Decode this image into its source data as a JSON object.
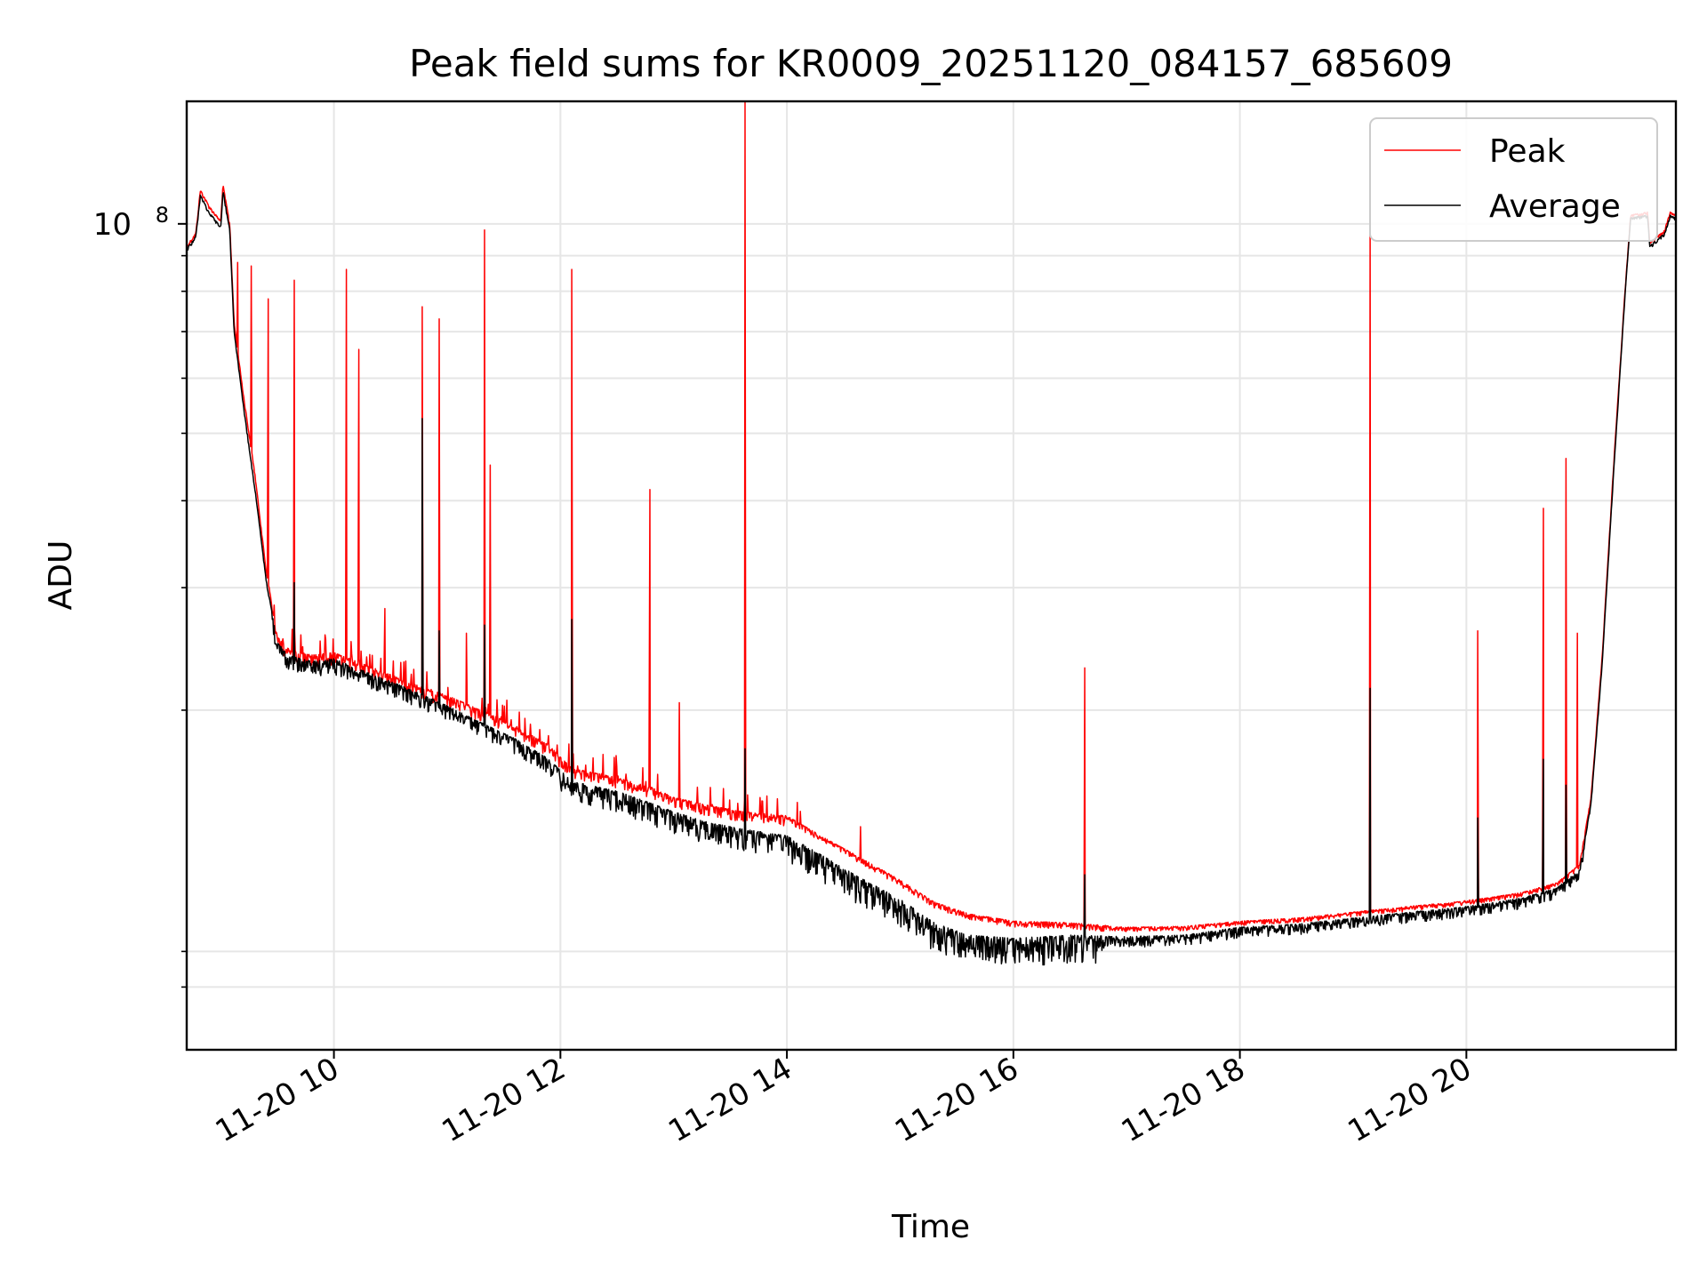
{
  "chart_data": {
    "type": "line",
    "title": "Peak field sums for KR0009_20251120_084157_685609",
    "xlabel": "Time",
    "ylabel": "ADU",
    "yscale": "log",
    "grid": true,
    "legend_position": "top-right",
    "x_unit": "hour of day (2025-11-20)",
    "xlim": [
      8.7,
      21.85
    ],
    "ylim": [
      6500000,
      150000000
    ],
    "x_ticks": [
      {
        "value": 10,
        "label": "11-20 10"
      },
      {
        "value": 12,
        "label": "11-20 12"
      },
      {
        "value": 14,
        "label": "11-20 14"
      },
      {
        "value": 16,
        "label": "11-20 16"
      },
      {
        "value": 18,
        "label": "11-20 18"
      },
      {
        "value": 20,
        "label": "11-20 20"
      }
    ],
    "y_major_tick": {
      "value": 100000000,
      "label_base": "10",
      "label_exp": "8"
    },
    "y_minor_ticks": [
      8000000,
      9000000,
      20000000,
      30000000,
      40000000,
      50000000,
      60000000,
      70000000,
      80000000,
      90000000
    ],
    "series": [
      {
        "name": "Peak",
        "color": "#ff0000",
        "baseline": [
          [
            8.7,
            93000000
          ],
          [
            8.78,
            97000000
          ],
          [
            8.82,
            112000000
          ],
          [
            8.9,
            106000000
          ],
          [
            9.0,
            101000000
          ],
          [
            9.02,
            114000000
          ],
          [
            9.08,
            100000000
          ],
          [
            9.12,
            72000000
          ],
          [
            9.2,
            57000000
          ],
          [
            9.3,
            44000000
          ],
          [
            9.4,
            32000000
          ],
          [
            9.5,
            25500000
          ],
          [
            9.6,
            24500000
          ],
          [
            9.8,
            24000000
          ],
          [
            10.0,
            24200000
          ],
          [
            10.2,
            23500000
          ],
          [
            10.5,
            22500000
          ],
          [
            10.8,
            21500000
          ],
          [
            11.0,
            21000000
          ],
          [
            11.3,
            20000000
          ],
          [
            11.6,
            19000000
          ],
          [
            11.9,
            17800000
          ],
          [
            12.1,
            16500000
          ],
          [
            12.5,
            16000000
          ],
          [
            12.8,
            15500000
          ],
          [
            13.0,
            15000000
          ],
          [
            13.3,
            14600000
          ],
          [
            13.6,
            14300000
          ],
          [
            14.0,
            14100000
          ],
          [
            14.3,
            13200000
          ],
          [
            14.6,
            12400000
          ],
          [
            15.0,
            11400000
          ],
          [
            15.3,
            10600000
          ],
          [
            15.6,
            10200000
          ],
          [
            16.0,
            9950000
          ],
          [
            16.5,
            9900000
          ],
          [
            17.0,
            9750000
          ],
          [
            17.5,
            9780000
          ],
          [
            18.0,
            9950000
          ],
          [
            18.5,
            10050000
          ],
          [
            19.0,
            10250000
          ],
          [
            19.5,
            10450000
          ],
          [
            19.9,
            10600000
          ],
          [
            20.2,
            10750000
          ],
          [
            20.5,
            10950000
          ],
          [
            20.8,
            11300000
          ],
          [
            21.0,
            12000000
          ],
          [
            21.1,
            15000000
          ],
          [
            21.2,
            24000000
          ],
          [
            21.3,
            45000000
          ],
          [
            21.4,
            80000000
          ],
          [
            21.45,
            103000000
          ],
          [
            21.6,
            104000000
          ],
          [
            21.62,
            94000000
          ],
          [
            21.75,
            98000000
          ],
          [
            21.8,
            104000000
          ],
          [
            21.85,
            103000000
          ]
        ],
        "spikes": [
          [
            9.07,
            101000000
          ],
          [
            9.15,
            88000000
          ],
          [
            9.27,
            87000000
          ],
          [
            9.42,
            78000000
          ],
          [
            9.65,
            83000000
          ],
          [
            10.11,
            86000000
          ],
          [
            10.22,
            66000000
          ],
          [
            10.45,
            28000000
          ],
          [
            10.78,
            76000000
          ],
          [
            10.93,
            73000000
          ],
          [
            11.17,
            25800000
          ],
          [
            11.33,
            98000000
          ],
          [
            11.38,
            45000000
          ],
          [
            12.1,
            86000000
          ],
          [
            12.79,
            41500000
          ],
          [
            13.05,
            20500000
          ],
          [
            13.63,
            150000000
          ],
          [
            14.65,
            13600000
          ],
          [
            16.63,
            23000000
          ],
          [
            19.15,
            103500000
          ],
          [
            20.1,
            26000000
          ],
          [
            20.68,
            39000000
          ],
          [
            20.88,
            46000000
          ],
          [
            20.98,
            25800000
          ]
        ]
      },
      {
        "name": "Average",
        "color": "#000000",
        "baseline": [
          [
            8.7,
            92000000
          ],
          [
            8.78,
            96000000
          ],
          [
            8.82,
            110000000
          ],
          [
            8.9,
            104000000
          ],
          [
            9.0,
            99000000
          ],
          [
            9.02,
            112000000
          ],
          [
            9.08,
            98000000
          ],
          [
            9.12,
            70000000
          ],
          [
            9.2,
            55000000
          ],
          [
            9.3,
            42000000
          ],
          [
            9.4,
            31000000
          ],
          [
            9.5,
            25000000
          ],
          [
            9.6,
            24000000
          ],
          [
            9.8,
            23500000
          ],
          [
            10.0,
            23700000
          ],
          [
            10.2,
            23000000
          ],
          [
            10.5,
            22000000
          ],
          [
            10.8,
            21000000
          ],
          [
            11.0,
            20300000
          ],
          [
            11.3,
            19200000
          ],
          [
            11.6,
            18200000
          ],
          [
            11.9,
            17000000
          ],
          [
            12.1,
            15800000
          ],
          [
            12.5,
            15300000
          ],
          [
            12.8,
            14700000
          ],
          [
            13.0,
            14300000
          ],
          [
            13.3,
            13800000
          ],
          [
            13.6,
            13500000
          ],
          [
            14.0,
            13200000
          ],
          [
            14.3,
            12400000
          ],
          [
            14.6,
            11600000
          ],
          [
            15.0,
            10700000
          ],
          [
            15.3,
            9900000
          ],
          [
            15.6,
            9500000
          ],
          [
            16.0,
            9400000
          ],
          [
            16.5,
            9500000
          ],
          [
            17.0,
            9450000
          ],
          [
            17.5,
            9500000
          ],
          [
            18.0,
            9750000
          ],
          [
            18.5,
            9850000
          ],
          [
            19.0,
            10050000
          ],
          [
            19.5,
            10250000
          ],
          [
            19.9,
            10400000
          ],
          [
            20.2,
            10550000
          ],
          [
            20.5,
            10750000
          ],
          [
            20.8,
            11100000
          ],
          [
            21.0,
            11800000
          ],
          [
            21.1,
            14700000
          ],
          [
            21.2,
            23500000
          ],
          [
            21.3,
            44000000
          ],
          [
            21.4,
            79000000
          ],
          [
            21.45,
            102000000
          ],
          [
            21.6,
            103000000
          ],
          [
            21.62,
            93000000
          ],
          [
            21.75,
            97000000
          ],
          [
            21.8,
            103000000
          ],
          [
            21.85,
            102000000
          ]
        ],
        "spikes": [
          [
            9.65,
            30500000
          ],
          [
            10.78,
            52500000
          ],
          [
            10.93,
            26000000
          ],
          [
            11.33,
            26500000
          ],
          [
            12.1,
            27000000
          ],
          [
            13.63,
            17600000
          ],
          [
            16.63,
            11600000
          ],
          [
            19.15,
            21500000
          ],
          [
            20.1,
            14000000
          ],
          [
            20.68,
            17000000
          ],
          [
            20.88,
            15600000
          ]
        ]
      }
    ]
  }
}
